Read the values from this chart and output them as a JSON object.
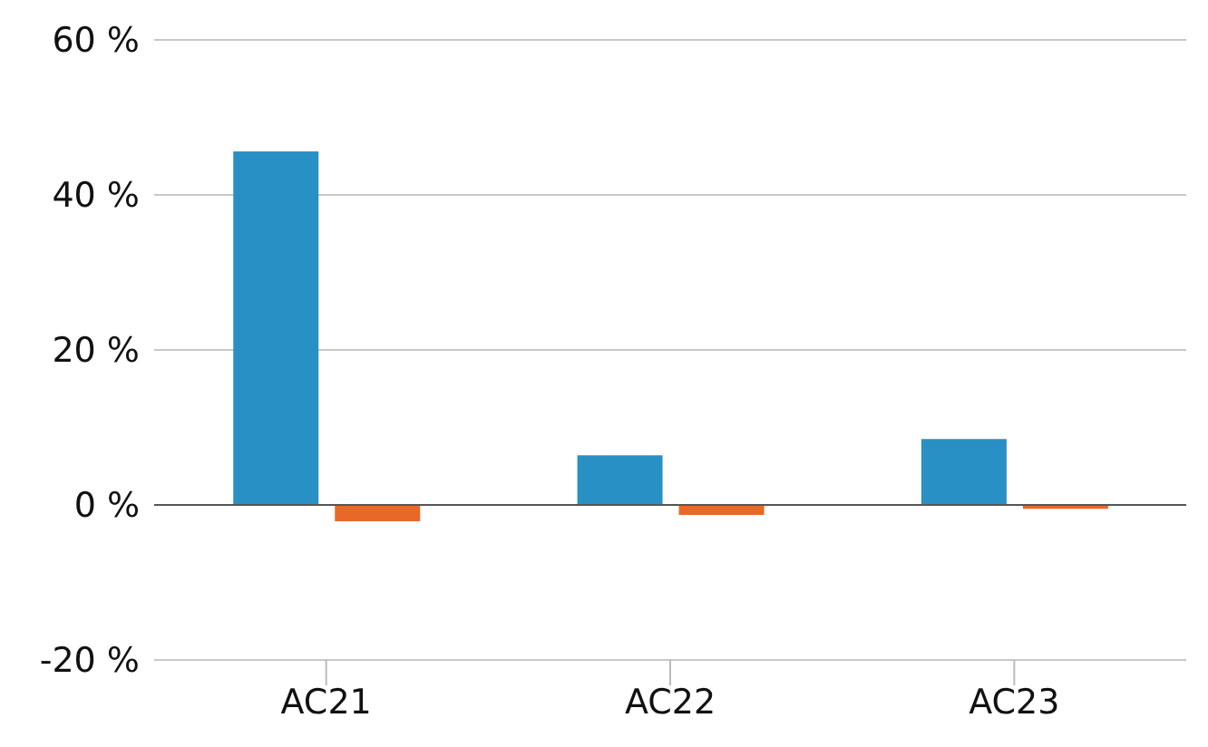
{
  "chart_data": {
    "type": "bar",
    "categories": [
      "AC21",
      "AC22",
      "AC23"
    ],
    "series": [
      {
        "color": "#2990c6",
        "values": [
          45.6,
          6.4,
          8.5
        ]
      },
      {
        "color": "#e8682a",
        "values": [
          -2.1,
          -1.3,
          -0.5
        ]
      }
    ],
    "ylim": [
      -20,
      60
    ],
    "yticks": [
      {
        "value": -20,
        "label": "-20 %"
      },
      {
        "value": 0,
        "label": "0 %"
      },
      {
        "value": 20,
        "label": "20 %"
      },
      {
        "value": 40,
        "label": "40 %"
      },
      {
        "value": 60,
        "label": "60 %"
      }
    ],
    "grid": "y",
    "legend": false,
    "ref_lines": [
      {
        "axis": "y",
        "value": 0,
        "color": "#555555"
      }
    ]
  }
}
